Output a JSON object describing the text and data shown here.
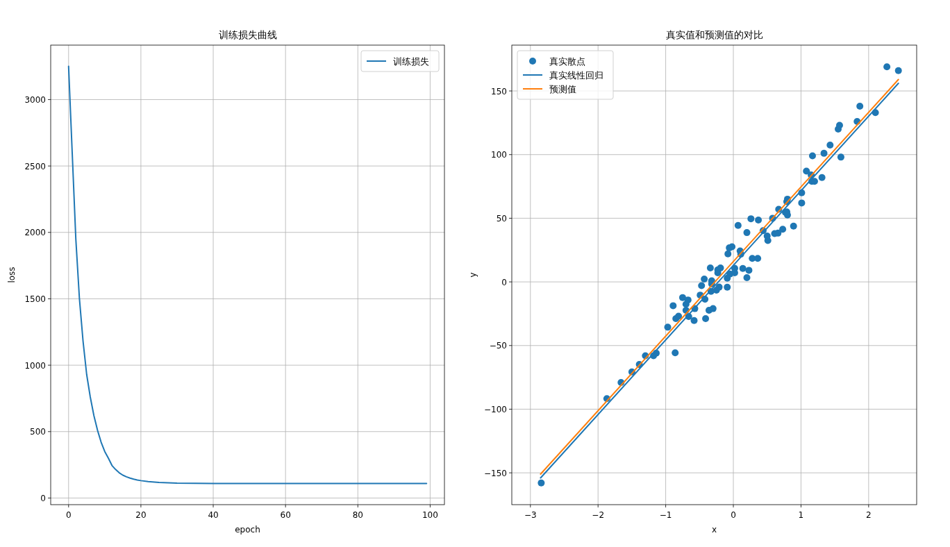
{
  "chart_data": [
    {
      "type": "line",
      "title": "训练损失曲线",
      "xlabel": "epoch",
      "ylabel": "loss",
      "xlim": [
        -4.95,
        103.95
      ],
      "ylim": [
        -50,
        3410
      ],
      "xticks": [
        0,
        20,
        40,
        60,
        80,
        100
      ],
      "yticks": [
        0,
        500,
        1000,
        1500,
        2000,
        2500,
        3000
      ],
      "grid": true,
      "legend": "top right",
      "series": [
        {
          "name": "训练损失",
          "color": "#1f77b4",
          "x": [
            0,
            1,
            2,
            3,
            4,
            5,
            6,
            7,
            8,
            9,
            10,
            11,
            12,
            13,
            14,
            15,
            16,
            17,
            18,
            19,
            20,
            22,
            25,
            30,
            40,
            60,
            80,
            99
          ],
          "values": [
            3250,
            2600,
            1950,
            1500,
            1180,
            930,
            760,
            620,
            510,
            420,
            350,
            300,
            245,
            215,
            190,
            172,
            160,
            150,
            142,
            136,
            131,
            124,
            117,
            112,
            110,
            110,
            110,
            110
          ]
        }
      ]
    },
    {
      "type": "scatter",
      "title": "真实值和预测值的对比",
      "xlabel": "x",
      "ylabel": "y",
      "xlim": [
        -3.275,
        2.71
      ],
      "ylim": [
        -175,
        186
      ],
      "xticks": [
        -3,
        -2,
        -1,
        0,
        1,
        2
      ],
      "yticks": [
        -150,
        -100,
        -50,
        0,
        50,
        100,
        150
      ],
      "grid": true,
      "legend": "top left",
      "series": [
        {
          "name": "真实散点",
          "marker": "circle",
          "color": "#1f77b4",
          "x": [
            2.27,
            2.44,
            1.87,
            1.83,
            2.1,
            1.57,
            1.55,
            1.43,
            1.59,
            1.17,
            1.34,
            1.08,
            1.15,
            1.31,
            1.16,
            1.2,
            1.01,
            1.01,
            0.8,
            0.79,
            0.67,
            0.79,
            0.8,
            0.77,
            0.58,
            0.26,
            0.37,
            0.07,
            0.2,
            0.89,
            0.73,
            0.66,
            0.61,
            0.5,
            0.51,
            0.44,
            -0.08,
            -0.06,
            -0.02,
            0.1,
            0.11,
            0.28,
            0.36,
            -0.34,
            -0.23,
            -0.19,
            -0.23,
            0.02,
            0.14,
            0.23,
            0.02,
            -0.05,
            -0.09,
            0.2,
            -0.43,
            -0.32,
            -0.32,
            -0.47,
            -0.21,
            -0.09,
            -0.33,
            -0.25,
            -0.49,
            -0.42,
            -0.75,
            -0.67,
            -0.89,
            -0.7,
            -0.7,
            -0.57,
            -0.36,
            -0.3,
            -0.85,
            -0.81,
            -0.66,
            -0.58,
            -0.41,
            -0.97,
            -0.86,
            -1.3,
            -1.18,
            -1.14,
            -1.39,
            -1.5,
            -1.66,
            -1.87,
            -2.84
          ],
          "values": [
            169,
            166,
            138,
            126,
            133,
            123,
            120,
            107.5,
            98,
            99,
            101,
            87,
            84,
            82,
            79,
            79,
            70,
            62,
            65,
            63,
            57,
            55,
            52.5,
            54.6,
            50,
            49.6,
            48.6,
            44.4,
            38.7,
            43.8,
            41.4,
            38.3,
            37.9,
            36,
            32.5,
            40.3,
            22,
            26.7,
            27.6,
            24.3,
            21.8,
            18.5,
            18.5,
            11,
            9.5,
            11,
            7.1,
            10.7,
            10.5,
            9.1,
            7.1,
            6.2,
            2.9,
            3.3,
            2.2,
            0.9,
            -1.6,
            -3,
            -4.1,
            -4.2,
            -7.4,
            -6.5,
            -10.4,
            -13.6,
            -12.3,
            -14.2,
            -18.7,
            -17.5,
            -22.3,
            -21,
            -22.3,
            -21,
            -28.9,
            -26.9,
            -27.2,
            -30.4,
            -28.9,
            -35.6,
            -55.7,
            -58,
            -58,
            -56,
            -64.9,
            -70.7,
            -79,
            -91.7,
            -158
          ]
        },
        {
          "name": "真实线性回归",
          "type": "line",
          "color": "#1f77b4",
          "x": [
            -2.85,
            2.44
          ],
          "values": [
            -154,
            156
          ]
        },
        {
          "name": "预测值",
          "type": "line",
          "color": "#ff7f0e",
          "x": [
            -2.85,
            2.44
          ],
          "values": [
            -151,
            159
          ]
        }
      ]
    }
  ]
}
